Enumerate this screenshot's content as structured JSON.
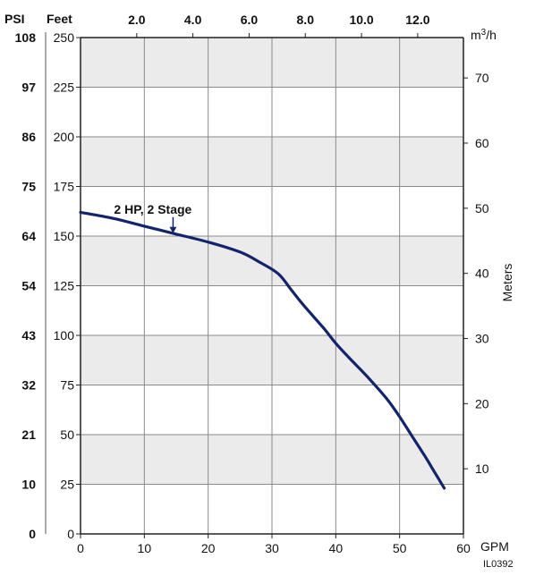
{
  "chart_data": {
    "type": "line",
    "title": "",
    "grid": true,
    "x_axis": {
      "label": "GPM",
      "range": [
        0,
        60
      ],
      "ticks": [
        0,
        10,
        20,
        30,
        40,
        50,
        60
      ]
    },
    "top_axis": {
      "unit": "m3/h",
      "label_base": "m",
      "label_sup": "3",
      "label_tail": "/h",
      "ticks": [
        2.0,
        4.0,
        6.0,
        8.0,
        10.0,
        12.0
      ],
      "tick_labels": [
        "2.0",
        "4.0",
        "6.0",
        "8.0",
        "10.0",
        "12.0"
      ]
    },
    "y_axis": {
      "label": "Feet",
      "range": [
        0,
        250
      ],
      "ticks": [
        0,
        25,
        50,
        75,
        100,
        125,
        150,
        175,
        200,
        225,
        250
      ]
    },
    "psi_axis": {
      "label": "PSI",
      "tick_labels": [
        "0",
        "10",
        "21",
        "32",
        "43",
        "54",
        "64",
        "75",
        "86",
        "97",
        "108"
      ]
    },
    "right_axis": {
      "label": "Meters",
      "ticks": [
        10,
        20,
        30,
        40,
        50,
        60,
        70
      ]
    },
    "series": [
      {
        "name": "2 HP, 2 Stage",
        "color": "#14246b",
        "x": [
          0,
          5,
          10,
          15,
          20,
          25,
          28,
          31,
          33,
          35,
          38,
          40,
          42,
          45,
          48,
          50,
          52,
          54,
          55.5,
          57
        ],
        "y": [
          162,
          159,
          155,
          151,
          147,
          142,
          137,
          131,
          123,
          115,
          104,
          96,
          89,
          79,
          68,
          59,
          49,
          39,
          31,
          23
        ]
      }
    ],
    "annotations": [
      {
        "text": "2 HP, 2 Stage",
        "arrow_x": 14.5,
        "arrow_y": 151
      }
    ]
  },
  "figure_code": "IL0392"
}
